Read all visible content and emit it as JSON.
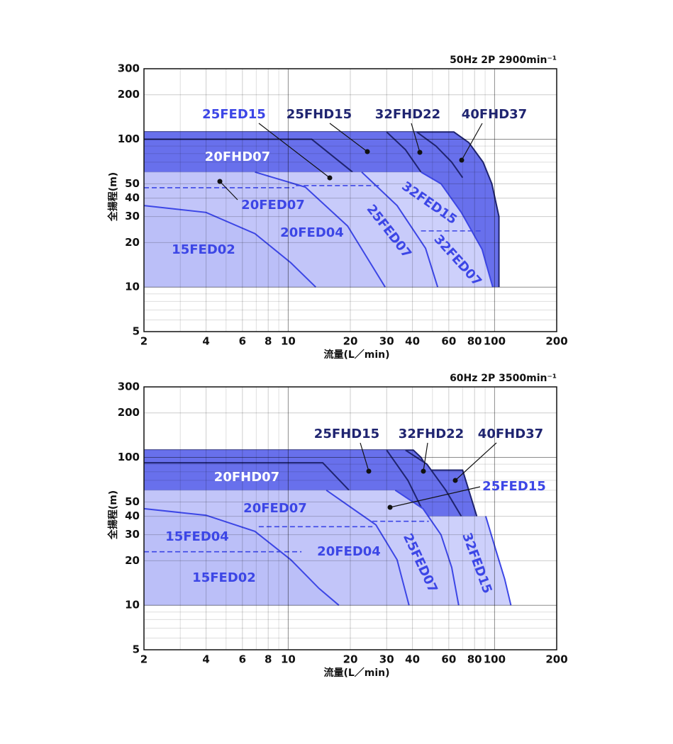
{
  "chart_data": [
    {
      "type": "area",
      "title": "50Hz 2P 2900min⁻¹",
      "xlabel": "流量(L／min)",
      "ylabel": "全揚程(m)",
      "xlog": true,
      "ylog": true,
      "xlim": [
        2,
        200
      ],
      "ylim": [
        5,
        300
      ],
      "xticks": [
        2,
        4,
        6,
        8,
        10,
        20,
        30,
        40,
        60,
        80,
        100,
        200
      ],
      "yticks": [
        5,
        10,
        20,
        30,
        40,
        50,
        100,
        200,
        300
      ],
      "xminor": [
        3,
        5,
        7,
        9,
        50,
        70,
        90
      ],
      "yminor": [
        6,
        7,
        8,
        9,
        60,
        70,
        80,
        90
      ],
      "grid": true,
      "series": [
        {
          "name": "40FHD37",
          "style": "fill",
          "color": "#1f2470",
          "fill": "#6870ec",
          "stroke_top": true,
          "x": [
            2,
            63.5,
            75,
            88,
            97,
            105,
            105
          ],
          "values": [
            112,
            112,
            95,
            70,
            50,
            30,
            10
          ]
        },
        {
          "name": "32FHD22",
          "style": "fill",
          "color": "#1f2470",
          "fill": "#6870ec",
          "x": [
            2,
            42,
            52,
            62,
            70
          ],
          "values": [
            112,
            112,
            90,
            70,
            55
          ]
        },
        {
          "name": "25FHD15",
          "style": "fill",
          "color": "#1f2470",
          "fill": "#6870ec",
          "x": [
            2,
            30,
            37,
            44
          ],
          "values": [
            112,
            112,
            85,
            60
          ]
        },
        {
          "name": "20FHD07",
          "style": "fill",
          "color": "#1f2470",
          "fill": "#6870ec",
          "stroke_top": true,
          "x": [
            2,
            13,
            20.5
          ],
          "values": [
            100,
            100,
            60
          ]
        },
        {
          "name": "32FED15",
          "style": "fill",
          "color": "#3c46e6",
          "fill": "#cdd0fb",
          "x": [
            2,
            44,
            55,
            69,
            87,
            98
          ],
          "values": [
            60,
            60,
            50,
            32,
            18,
            10
          ]
        },
        {
          "name": "25FED07",
          "style": "fill",
          "color": "#3c46e6",
          "fill": "#c8cbfa",
          "x": [
            2,
            22.7,
            33.7,
            46.3,
            53
          ],
          "values": [
            60,
            60,
            35.6,
            18.3,
            10
          ]
        },
        {
          "name": "20FED04",
          "style": "fill",
          "color": "#3c46e6",
          "fill": "#c2c5f9",
          "x": [
            2,
            6.9,
            12.1,
            19.4,
            29.5
          ],
          "values": [
            60,
            60,
            47.5,
            25.9,
            10
          ]
        },
        {
          "name": "15FED02",
          "style": "fill",
          "color": "#3c46e6",
          "fill": "#bbbff8",
          "x": [
            2,
            4,
            6.9,
            10.3,
            13.6
          ],
          "values": [
            35.6,
            32,
            23,
            14.6,
            10
          ]
        },
        {
          "name": "20FED07",
          "style": "dashed",
          "color": "#3c46e6",
          "x": [
            2,
            10.7
          ],
          "values": [
            47,
            47
          ]
        },
        {
          "name": "25FED15",
          "style": "dashed",
          "color": "#3c46e6",
          "x": [
            10.9,
            27.6
          ],
          "values": [
            48.6,
            48.6
          ]
        },
        {
          "name": "32FED07",
          "style": "dashed",
          "color": "#3c46e6",
          "x": [
            44,
            86
          ],
          "values": [
            24,
            24
          ]
        }
      ]
    },
    {
      "type": "area",
      "title": "60Hz 2P 3500min⁻¹",
      "xlabel": "流量(L／min)",
      "ylabel": "全揚程(m)",
      "xlog": true,
      "ylog": true,
      "xlim": [
        2,
        200
      ],
      "ylim": [
        5,
        300
      ],
      "xticks": [
        2,
        4,
        6,
        8,
        10,
        20,
        30,
        40,
        60,
        80,
        100,
        200
      ],
      "yticks": [
        5,
        10,
        20,
        30,
        40,
        50,
        100,
        200,
        300
      ],
      "xminor": [
        3,
        5,
        7,
        9,
        50,
        70,
        90
      ],
      "yminor": [
        6,
        7,
        8,
        9,
        60,
        70,
        80,
        90
      ],
      "grid": true,
      "series": [
        {
          "name": "40FHD37",
          "style": "fill",
          "color": "#1f2470",
          "fill": "#6870ec",
          "stroke_top": true,
          "x": [
            2,
            40.4,
            44,
            48,
            70,
            82
          ],
          "values": [
            112,
            112,
            100,
            82,
            82,
            40
          ]
        },
        {
          "name": "32FHD22",
          "style": "fill",
          "color": "#1f2470",
          "fill": "#6870ec",
          "x": [
            2,
            37,
            47,
            58,
            69
          ],
          "values": [
            112,
            112,
            90,
            60,
            40
          ]
        },
        {
          "name": "25FHD15",
          "style": "fill",
          "color": "#1f2470",
          "fill": "#6870ec",
          "x": [
            2,
            30,
            38,
            46.3
          ],
          "values": [
            112,
            112,
            70,
            40
          ]
        },
        {
          "name": "20FHD07",
          "style": "fill",
          "color": "#1f2470",
          "fill": "#6870ec",
          "stroke_top": true,
          "x": [
            2,
            14.7,
            19.7
          ],
          "values": [
            92,
            92,
            60
          ]
        },
        {
          "name": "32FED15",
          "style": "fill",
          "color": "#3c46e6",
          "fill": "#cdd0fb",
          "x": [
            2,
            90.6,
            102,
            112,
            120
          ],
          "values": [
            40,
            40,
            23,
            15,
            10
          ]
        },
        {
          "name": "25FED07",
          "style": "fill",
          "color": "#3c46e6",
          "fill": "#c8cbfa",
          "x": [
            2,
            33,
            45,
            55,
            62,
            67
          ],
          "values": [
            60,
            60,
            45,
            30,
            18,
            10
          ]
        },
        {
          "name": "20FED04",
          "style": "fill",
          "color": "#3c46e6",
          "fill": "#c2c5f9",
          "x": [
            2,
            15.3,
            26.6,
            33.7,
            38.5
          ],
          "values": [
            60,
            60,
            35,
            20.3,
            10
          ]
        },
        {
          "name": "15FED02",
          "style": "fill",
          "color": "#3c46e6",
          "fill": "#bbbff8",
          "x": [
            2,
            4,
            6.9,
            10.3,
            14.1,
            17.6
          ],
          "values": [
            45,
            40.6,
            31.6,
            20.3,
            13,
            10
          ]
        },
        {
          "name": "15FED04",
          "style": "dashed",
          "color": "#3c46e6",
          "x": [
            2,
            11.6
          ],
          "values": [
            23,
            23
          ]
        },
        {
          "name": "20FED07",
          "style": "dashed",
          "color": "#3c46e6",
          "x": [
            7.2,
            25.6
          ],
          "values": [
            34,
            34
          ]
        },
        {
          "name": "25FED15",
          "style": "dashed",
          "color": "#3c46e6",
          "x": [
            25.6,
            48
          ],
          "values": [
            37,
            37
          ]
        }
      ]
    }
  ]
}
